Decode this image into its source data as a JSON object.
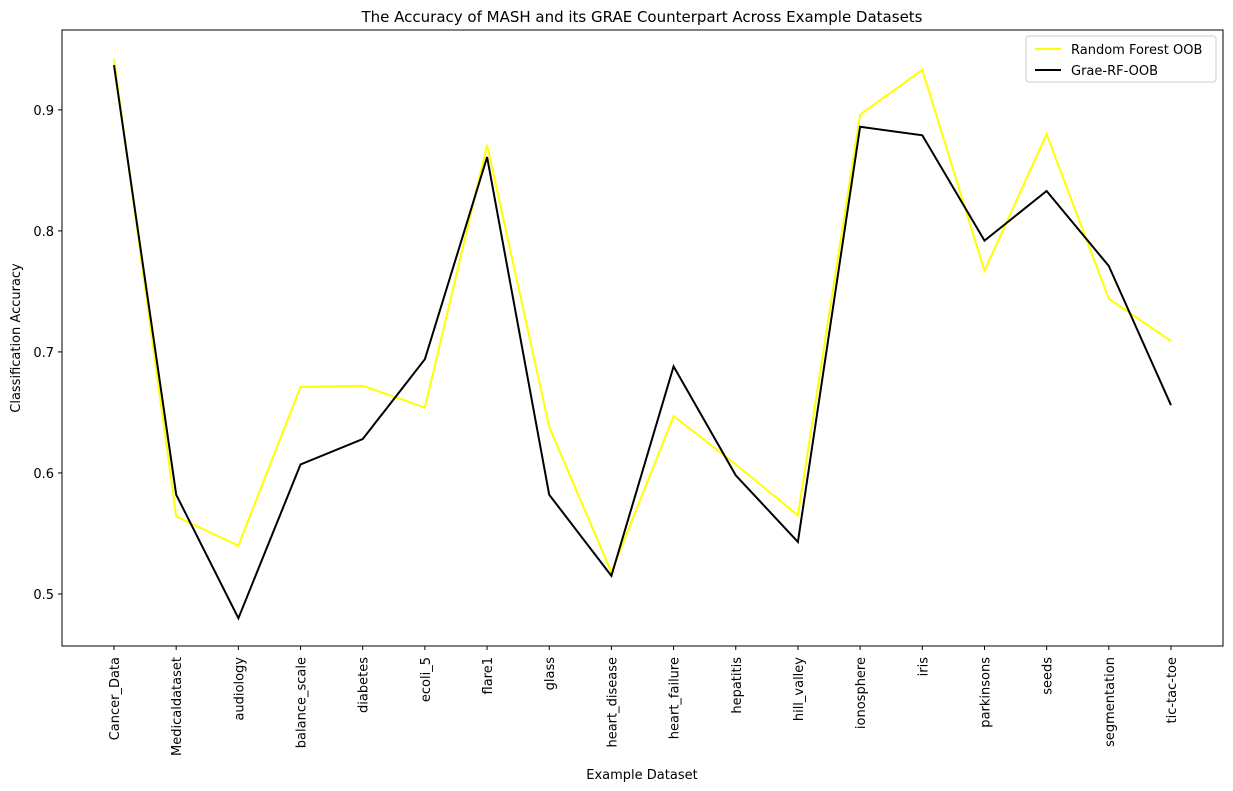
{
  "chart_data": {
    "type": "line",
    "title": "The Accuracy of MASH and its GRAE Counterpart Across Example Datasets",
    "xlabel": "Example Dataset",
    "ylabel": "Classification Accuracy",
    "categories": [
      "Cancer_Data",
      "Medicaldataset",
      "audiology",
      "balance_scale",
      "diabetes",
      "ecoli_5",
      "flare1",
      "glass",
      "heart_disease",
      "heart_failure",
      "hepatitis",
      "hill_valley",
      "ionosphere",
      "iris",
      "parkinsons",
      "seeds",
      "segmentation",
      "tic-tac-toe"
    ],
    "ylim": [
      0.457,
      0.966
    ],
    "yticks": [
      0.5,
      0.6,
      0.7,
      0.8,
      0.9
    ],
    "ytick_labels": [
      "0.5",
      "0.6",
      "0.7",
      "0.8",
      "0.9"
    ],
    "grid": false,
    "legend_position": "top-right",
    "series": [
      {
        "name": "Random Forest OOB",
        "color": "#ffff00",
        "values": [
          0.942,
          0.564,
          0.54,
          0.671,
          0.672,
          0.654,
          0.871,
          0.638,
          0.518,
          0.647,
          0.607,
          0.565,
          0.896,
          0.933,
          0.767,
          0.88,
          0.744,
          0.709
        ]
      },
      {
        "name": "Grae-RF-OOB",
        "color": "#000000",
        "values": [
          0.937,
          0.582,
          0.48,
          0.607,
          0.628,
          0.694,
          0.861,
          0.582,
          0.515,
          0.688,
          0.598,
          0.543,
          0.886,
          0.879,
          0.792,
          0.833,
          0.771,
          0.656
        ]
      }
    ]
  }
}
